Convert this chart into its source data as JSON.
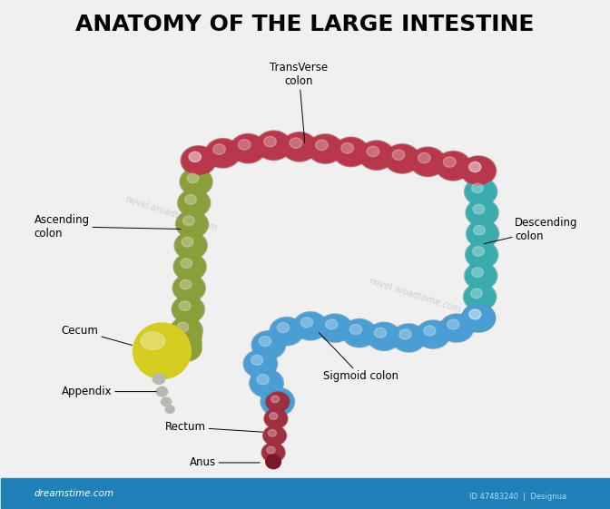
{
  "title": "ANATOMY OF THE LARGE INTESTINE",
  "title_fontsize": 18,
  "title_fontweight": "bold",
  "labels": {
    "transverse_colon": "TransVerse\ncolon",
    "ascending_colon": "Ascending\ncolon",
    "descending_colon": "Descending\ncolon",
    "cecum": "Cecum",
    "appendix": "Appendix",
    "sigmoid_colon": "Sigmoid colon",
    "rectum": "Rectum",
    "anus": "Anus"
  },
  "colors": {
    "transverse_colon": "#b8374a",
    "ascending_colon": "#8a9e3a",
    "descending_colon": "#3aacb0",
    "cecum": "#d4cc20",
    "appendix": "#b8b8b0",
    "sigmoid_colon": "#4a9ed4",
    "rectum": "#a03040",
    "background": "#f0f0f0",
    "footer": "#2080b8"
  },
  "watermark": "novel.aroadtome.com",
  "footer_text_left": "dreamstime.com",
  "footer_text_right": "ID 47483240  |  Designua"
}
